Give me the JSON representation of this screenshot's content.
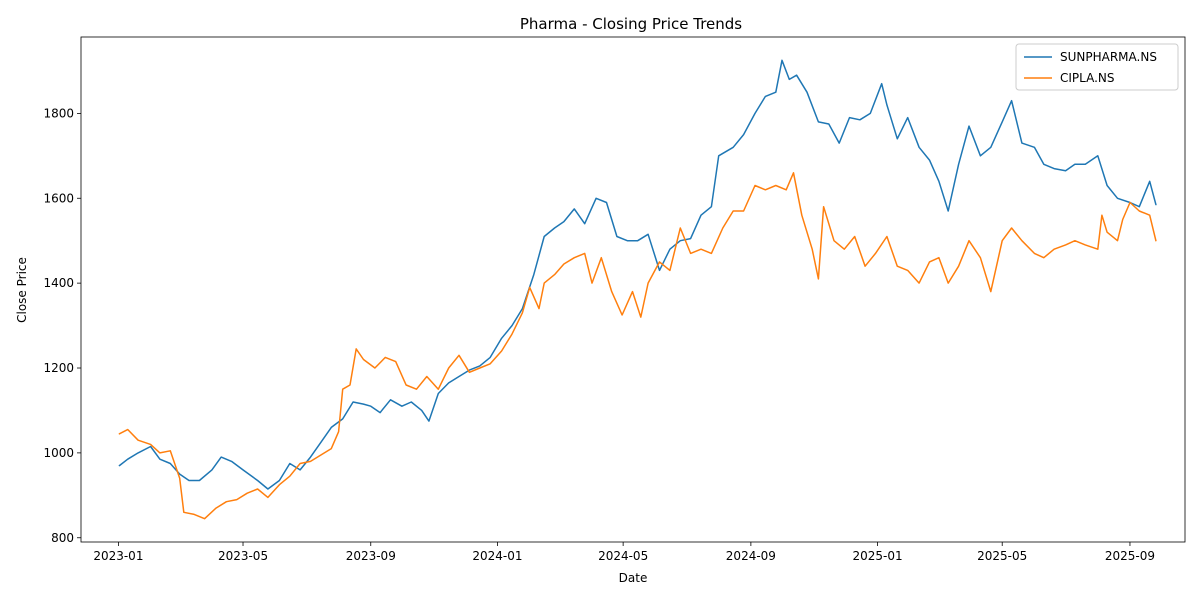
{
  "chart_data": {
    "type": "line",
    "title": "Pharma - Closing Price Trends",
    "xlabel": "Date",
    "ylabel": "Close Price",
    "xlim": [
      "2022-11-26",
      "2025-10-24"
    ],
    "ylim": [
      790,
      1980
    ],
    "x_ticks": [
      "2023-01",
      "2023-05",
      "2023-09",
      "2024-01",
      "2024-05",
      "2024-09",
      "2025-01",
      "2025-05",
      "2025-09"
    ],
    "y_ticks": [
      800,
      1000,
      1200,
      1400,
      1600,
      1800
    ],
    "grid": false,
    "legend_position": "top-right",
    "series": [
      {
        "name": "SUNPHARMA.NS",
        "color": "#1f77b4",
        "points": [
          [
            "2023-01-02",
            970
          ],
          [
            "2023-01-10",
            985
          ],
          [
            "2023-01-20",
            1000
          ],
          [
            "2023-02-01",
            1015
          ],
          [
            "2023-02-10",
            985
          ],
          [
            "2023-02-20",
            975
          ],
          [
            "2023-03-01",
            950
          ],
          [
            "2023-03-10",
            935
          ],
          [
            "2023-03-20",
            935
          ],
          [
            "2023-04-01",
            960
          ],
          [
            "2023-04-10",
            990
          ],
          [
            "2023-04-20",
            980
          ],
          [
            "2023-05-01",
            960
          ],
          [
            "2023-05-15",
            935
          ],
          [
            "2023-05-25",
            915
          ],
          [
            "2023-06-05",
            935
          ],
          [
            "2023-06-15",
            975
          ],
          [
            "2023-06-25",
            960
          ],
          [
            "2023-07-05",
            990
          ],
          [
            "2023-07-15",
            1025
          ],
          [
            "2023-07-25",
            1060
          ],
          [
            "2023-08-05",
            1080
          ],
          [
            "2023-08-15",
            1120
          ],
          [
            "2023-08-25",
            1115
          ],
          [
            "2023-09-01",
            1110
          ],
          [
            "2023-09-10",
            1095
          ],
          [
            "2023-09-20",
            1125
          ],
          [
            "2023-10-01",
            1110
          ],
          [
            "2023-10-10",
            1120
          ],
          [
            "2023-10-20",
            1100
          ],
          [
            "2023-10-27",
            1075
          ],
          [
            "2023-11-05",
            1140
          ],
          [
            "2023-11-15",
            1165
          ],
          [
            "2023-11-25",
            1180
          ],
          [
            "2023-12-05",
            1195
          ],
          [
            "2023-12-15",
            1205
          ],
          [
            "2023-12-25",
            1225
          ],
          [
            "2024-01-05",
            1270
          ],
          [
            "2024-01-15",
            1300
          ],
          [
            "2024-01-25",
            1340
          ],
          [
            "2024-02-05",
            1420
          ],
          [
            "2024-02-15",
            1510
          ],
          [
            "2024-02-25",
            1530
          ],
          [
            "2024-03-05",
            1545
          ],
          [
            "2024-03-15",
            1575
          ],
          [
            "2024-03-25",
            1540
          ],
          [
            "2024-04-05",
            1600
          ],
          [
            "2024-04-15",
            1590
          ],
          [
            "2024-04-25",
            1510
          ],
          [
            "2024-05-05",
            1500
          ],
          [
            "2024-05-15",
            1500
          ],
          [
            "2024-05-25",
            1515
          ],
          [
            "2024-06-05",
            1430
          ],
          [
            "2024-06-15",
            1480
          ],
          [
            "2024-06-25",
            1500
          ],
          [
            "2024-07-05",
            1505
          ],
          [
            "2024-07-15",
            1560
          ],
          [
            "2024-07-25",
            1580
          ],
          [
            "2024-08-01",
            1700
          ],
          [
            "2024-08-15",
            1720
          ],
          [
            "2024-08-25",
            1750
          ],
          [
            "2024-09-05",
            1800
          ],
          [
            "2024-09-15",
            1840
          ],
          [
            "2024-09-25",
            1850
          ],
          [
            "2024-10-01",
            1925
          ],
          [
            "2024-10-08",
            1880
          ],
          [
            "2024-10-15",
            1890
          ],
          [
            "2024-10-25",
            1850
          ],
          [
            "2024-11-05",
            1780
          ],
          [
            "2024-11-15",
            1775
          ],
          [
            "2024-11-25",
            1730
          ],
          [
            "2024-12-05",
            1790
          ],
          [
            "2024-12-15",
            1785
          ],
          [
            "2024-12-25",
            1800
          ],
          [
            "2025-01-05",
            1870
          ],
          [
            "2025-01-10",
            1820
          ],
          [
            "2025-01-20",
            1740
          ],
          [
            "2025-01-30",
            1790
          ],
          [
            "2025-02-10",
            1720
          ],
          [
            "2025-02-20",
            1690
          ],
          [
            "2025-03-01",
            1640
          ],
          [
            "2025-03-10",
            1570
          ],
          [
            "2025-03-20",
            1680
          ],
          [
            "2025-03-30",
            1770
          ],
          [
            "2025-04-10",
            1700
          ],
          [
            "2025-04-20",
            1720
          ],
          [
            "2025-05-01",
            1780
          ],
          [
            "2025-05-10",
            1830
          ],
          [
            "2025-05-20",
            1730
          ],
          [
            "2025-06-01",
            1720
          ],
          [
            "2025-06-10",
            1680
          ],
          [
            "2025-06-20",
            1670
          ],
          [
            "2025-07-01",
            1665
          ],
          [
            "2025-07-10",
            1680
          ],
          [
            "2025-07-20",
            1680
          ],
          [
            "2025-08-01",
            1700
          ],
          [
            "2025-08-10",
            1630
          ],
          [
            "2025-08-20",
            1600
          ],
          [
            "2025-09-01",
            1590
          ],
          [
            "2025-09-10",
            1580
          ],
          [
            "2025-09-20",
            1640
          ],
          [
            "2025-09-26",
            1585
          ]
        ]
      },
      {
        "name": "CIPLA.NS",
        "color": "#ff7f0e",
        "points": [
          [
            "2023-01-02",
            1045
          ],
          [
            "2023-01-10",
            1055
          ],
          [
            "2023-01-20",
            1030
          ],
          [
            "2023-02-01",
            1020
          ],
          [
            "2023-02-10",
            1000
          ],
          [
            "2023-02-20",
            1005
          ],
          [
            "2023-03-01",
            940
          ],
          [
            "2023-03-05",
            860
          ],
          [
            "2023-03-15",
            855
          ],
          [
            "2023-03-25",
            845
          ],
          [
            "2023-04-05",
            870
          ],
          [
            "2023-04-15",
            885
          ],
          [
            "2023-04-25",
            890
          ],
          [
            "2023-05-05",
            905
          ],
          [
            "2023-05-15",
            915
          ],
          [
            "2023-05-25",
            895
          ],
          [
            "2023-06-05",
            925
          ],
          [
            "2023-06-15",
            945
          ],
          [
            "2023-06-25",
            975
          ],
          [
            "2023-07-05",
            980
          ],
          [
            "2023-07-15",
            995
          ],
          [
            "2023-07-25",
            1010
          ],
          [
            "2023-08-01",
            1050
          ],
          [
            "2023-08-05",
            1150
          ],
          [
            "2023-08-12",
            1160
          ],
          [
            "2023-08-18",
            1245
          ],
          [
            "2023-08-25",
            1220
          ],
          [
            "2023-09-05",
            1200
          ],
          [
            "2023-09-15",
            1225
          ],
          [
            "2023-09-25",
            1215
          ],
          [
            "2023-10-05",
            1160
          ],
          [
            "2023-10-15",
            1150
          ],
          [
            "2023-10-25",
            1180
          ],
          [
            "2023-11-05",
            1150
          ],
          [
            "2023-11-15",
            1200
          ],
          [
            "2023-11-25",
            1230
          ],
          [
            "2023-12-05",
            1190
          ],
          [
            "2023-12-15",
            1200
          ],
          [
            "2023-12-25",
            1210
          ],
          [
            "2024-01-05",
            1240
          ],
          [
            "2024-01-15",
            1280
          ],
          [
            "2024-01-25",
            1330
          ],
          [
            "2024-02-01",
            1390
          ],
          [
            "2024-02-10",
            1340
          ],
          [
            "2024-02-15",
            1400
          ],
          [
            "2024-02-25",
            1420
          ],
          [
            "2024-03-05",
            1445
          ],
          [
            "2024-03-15",
            1460
          ],
          [
            "2024-03-25",
            1470
          ],
          [
            "2024-04-01",
            1400
          ],
          [
            "2024-04-10",
            1460
          ],
          [
            "2024-04-20",
            1380
          ],
          [
            "2024-04-30",
            1325
          ],
          [
            "2024-05-10",
            1380
          ],
          [
            "2024-05-18",
            1320
          ],
          [
            "2024-05-25",
            1400
          ],
          [
            "2024-06-05",
            1450
          ],
          [
            "2024-06-15",
            1430
          ],
          [
            "2024-06-25",
            1530
          ],
          [
            "2024-07-05",
            1470
          ],
          [
            "2024-07-15",
            1480
          ],
          [
            "2024-07-25",
            1470
          ],
          [
            "2024-08-05",
            1530
          ],
          [
            "2024-08-15",
            1570
          ],
          [
            "2024-08-25",
            1570
          ],
          [
            "2024-09-05",
            1630
          ],
          [
            "2024-09-15",
            1620
          ],
          [
            "2024-09-25",
            1630
          ],
          [
            "2024-10-05",
            1620
          ],
          [
            "2024-10-12",
            1660
          ],
          [
            "2024-10-20",
            1560
          ],
          [
            "2024-10-30",
            1480
          ],
          [
            "2024-11-05",
            1410
          ],
          [
            "2024-11-10",
            1580
          ],
          [
            "2024-11-20",
            1500
          ],
          [
            "2024-11-30",
            1480
          ],
          [
            "2024-12-10",
            1510
          ],
          [
            "2024-12-20",
            1440
          ],
          [
            "2024-12-30",
            1470
          ],
          [
            "2025-01-10",
            1510
          ],
          [
            "2025-01-20",
            1440
          ],
          [
            "2025-01-30",
            1430
          ],
          [
            "2025-02-10",
            1400
          ],
          [
            "2025-02-20",
            1450
          ],
          [
            "2025-03-01",
            1460
          ],
          [
            "2025-03-10",
            1400
          ],
          [
            "2025-03-20",
            1440
          ],
          [
            "2025-03-30",
            1500
          ],
          [
            "2025-04-10",
            1460
          ],
          [
            "2025-04-20",
            1380
          ],
          [
            "2025-05-01",
            1500
          ],
          [
            "2025-05-10",
            1530
          ],
          [
            "2025-05-20",
            1500
          ],
          [
            "2025-06-01",
            1470
          ],
          [
            "2025-06-10",
            1460
          ],
          [
            "2025-06-20",
            1480
          ],
          [
            "2025-07-01",
            1490
          ],
          [
            "2025-07-10",
            1500
          ],
          [
            "2025-07-20",
            1490
          ],
          [
            "2025-08-01",
            1480
          ],
          [
            "2025-08-05",
            1560
          ],
          [
            "2025-08-10",
            1520
          ],
          [
            "2025-08-20",
            1500
          ],
          [
            "2025-08-25",
            1550
          ],
          [
            "2025-09-01",
            1590
          ],
          [
            "2025-09-10",
            1570
          ],
          [
            "2025-09-20",
            1560
          ],
          [
            "2025-09-26",
            1500
          ]
        ]
      }
    ]
  }
}
